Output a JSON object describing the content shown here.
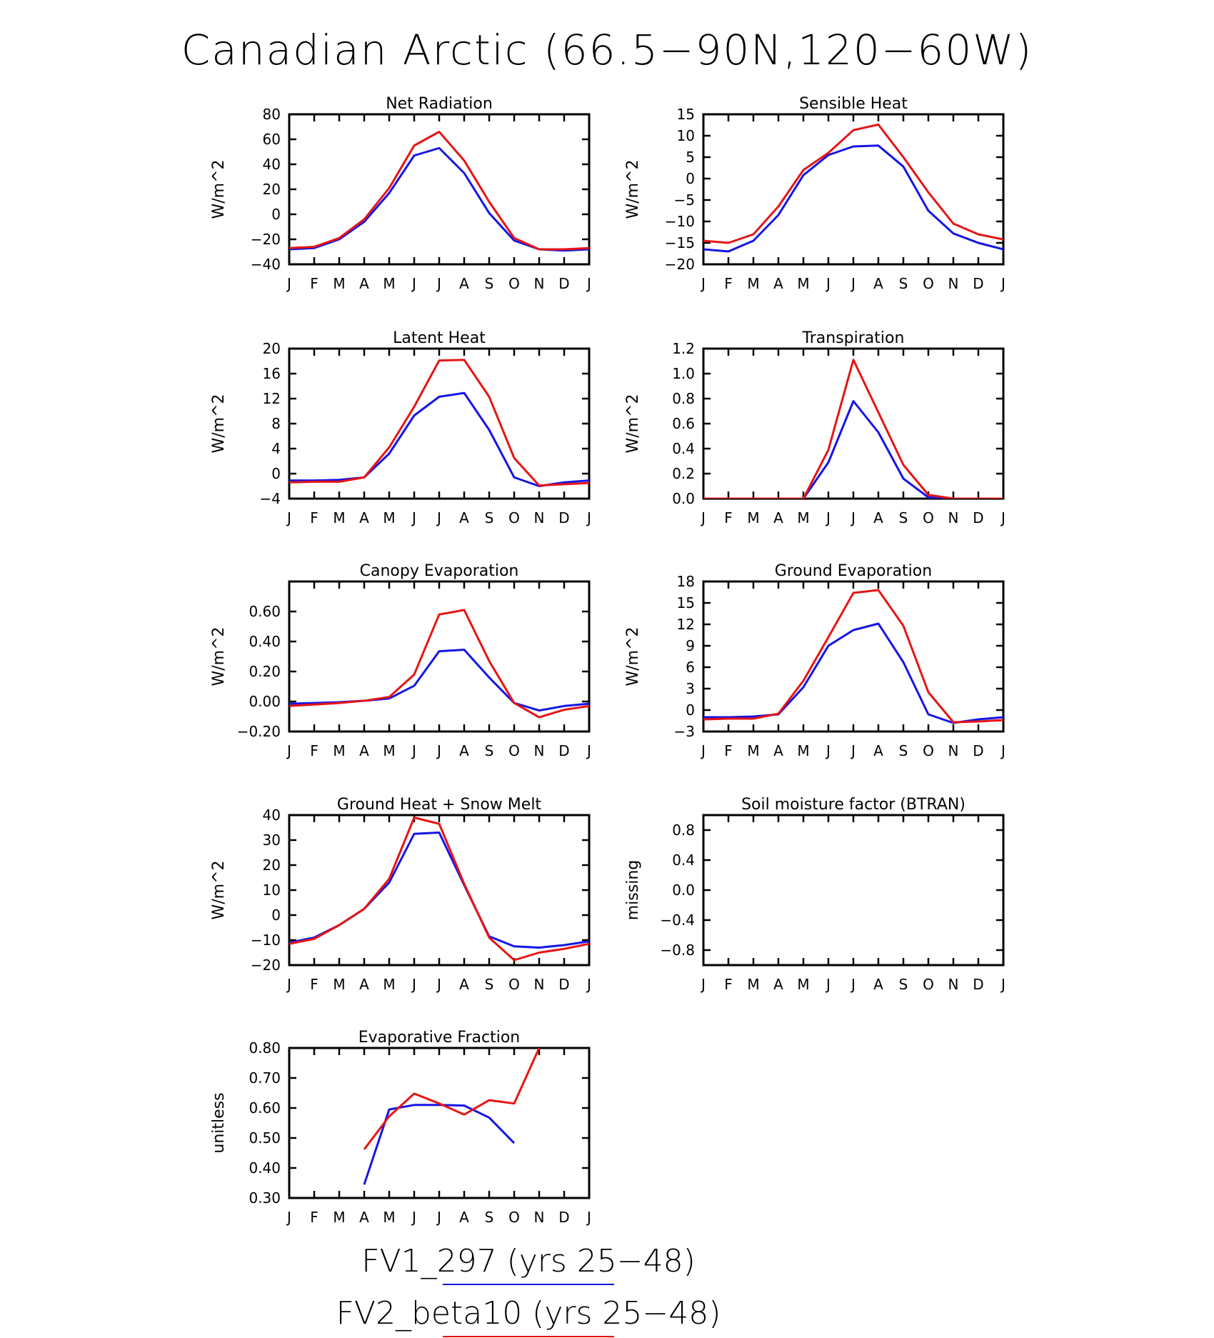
{
  "figure": {
    "title": "Canadian Arctic (66.5−90N,120−60W)",
    "legend": [
      {
        "label": "FV1_297 (yrs 25−48)",
        "color": "#1515e6"
      },
      {
        "label": "FV2_beta10 (yrs 25−48)",
        "color": "#e61515"
      }
    ]
  },
  "chart_data": [
    {
      "type": "line",
      "title": "Net Radiation",
      "ylabel": "W/m^2",
      "x": [
        "J",
        "F",
        "M",
        "A",
        "M",
        "J",
        "J",
        "A",
        "S",
        "O",
        "N",
        "D",
        "J"
      ],
      "ylim": [
        -40,
        80
      ],
      "yticks": [
        80,
        60,
        40,
        20,
        0,
        -20,
        -40
      ],
      "yticklabels": [
        "80",
        "60",
        "40",
        "20",
        "0",
        "−20",
        "−40"
      ],
      "series": [
        {
          "name": "FV1_297 (yrs 25−48)",
          "color": "#1515e6",
          "values": [
            -28,
            -27,
            -20,
            -6,
            17,
            47,
            53,
            33,
            1,
            -21,
            -28,
            -29,
            -28
          ]
        },
        {
          "name": "FV2_beta10 (yrs 25−48)",
          "color": "#e61515",
          "values": [
            -27,
            -26,
            -19,
            -4,
            21,
            55,
            66,
            43,
            10,
            -19,
            -28,
            -28,
            -27
          ]
        }
      ]
    },
    {
      "type": "line",
      "title": "Sensible Heat",
      "ylabel": "W/m^2",
      "x": [
        "J",
        "F",
        "M",
        "A",
        "M",
        "J",
        "J",
        "A",
        "S",
        "O",
        "N",
        "D",
        "J"
      ],
      "ylim": [
        -20,
        15
      ],
      "yticks": [
        15,
        10,
        5,
        0,
        -5,
        -10,
        -15,
        -20
      ],
      "yticklabels": [
        "15",
        "10",
        "5",
        "0",
        "−5",
        "−10",
        "−15",
        "−20"
      ],
      "series": [
        {
          "name": "FV1_297 (yrs 25−48)",
          "color": "#1515e6",
          "values": [
            -16.5,
            -17,
            -14.5,
            -8.5,
            0.8,
            5.5,
            7.5,
            7.7,
            2.8,
            -7.5,
            -12.8,
            -15,
            -16.5
          ]
        },
        {
          "name": "FV2_beta10 (yrs 25−48)",
          "color": "#e61515",
          "values": [
            -14.5,
            -15,
            -13,
            -6.5,
            2,
            6,
            11.3,
            12.6,
            5,
            -3.2,
            -10.5,
            -13,
            -14.2
          ]
        }
      ]
    },
    {
      "type": "line",
      "title": "Latent Heat",
      "ylabel": "W/m^2",
      "x": [
        "J",
        "F",
        "M",
        "A",
        "M",
        "J",
        "J",
        "A",
        "S",
        "O",
        "N",
        "D",
        "J"
      ],
      "ylim": [
        -4,
        20
      ],
      "yticks": [
        20,
        16,
        12,
        8,
        4,
        0,
        -4
      ],
      "yticklabels": [
        "20",
        "16",
        "12",
        "8",
        "4",
        "0",
        "−4"
      ],
      "series": [
        {
          "name": "FV1_297 (yrs 25−48)",
          "color": "#1515e6",
          "values": [
            -1.1,
            -1.1,
            -1.0,
            -0.6,
            3.2,
            9.3,
            12.3,
            12.9,
            7.0,
            -0.6,
            -2.0,
            -1.4,
            -1.1
          ]
        },
        {
          "name": "FV2_beta10 (yrs 25−48)",
          "color": "#e61515",
          "values": [
            -1.4,
            -1.3,
            -1.3,
            -0.6,
            4.2,
            10.7,
            18.1,
            18.2,
            12.3,
            2.5,
            -1.9,
            -1.7,
            -1.5
          ]
        }
      ]
    },
    {
      "type": "line",
      "title": "Transpiration",
      "ylabel": "W/m^2",
      "x": [
        "J",
        "F",
        "M",
        "A",
        "M",
        "J",
        "J",
        "A",
        "S",
        "O",
        "N",
        "D",
        "J"
      ],
      "ylim": [
        0.0,
        1.2
      ],
      "yticks": [
        1.2,
        1.0,
        0.8,
        0.6,
        0.4,
        0.2,
        0.0
      ],
      "yticklabels": [
        "1.2",
        "1.0",
        "0.8",
        "0.6",
        "0.4",
        "0.2",
        "0.0"
      ],
      "series": [
        {
          "name": "FV1_297 (yrs 25−48)",
          "color": "#1515e6",
          "values": [
            0,
            0,
            0,
            0,
            0,
            0.29,
            0.78,
            0.53,
            0.16,
            0.01,
            0,
            0,
            0
          ]
        },
        {
          "name": "FV2_beta10 (yrs 25−48)",
          "color": "#e61515",
          "values": [
            0,
            0,
            0,
            0,
            0,
            0.39,
            1.11,
            0.69,
            0.27,
            0.03,
            0,
            0,
            0
          ]
        }
      ]
    },
    {
      "type": "line",
      "title": "Canopy Evaporation",
      "ylabel": "W/m^2",
      "x": [
        "J",
        "F",
        "M",
        "A",
        "M",
        "J",
        "J",
        "A",
        "S",
        "O",
        "N",
        "D",
        "J"
      ],
      "ylim": [
        -0.2,
        0.8
      ],
      "yticks": [
        0.6,
        0.4,
        0.2,
        0.0,
        -0.2
      ],
      "yticklabels": [
        "0.60",
        "0.40",
        "0.20",
        "0.00",
        "−0.20"
      ],
      "series": [
        {
          "name": "FV1_297 (yrs 25−48)",
          "color": "#1515e6",
          "values": [
            -0.015,
            -0.01,
            -0.005,
            0.005,
            0.02,
            0.105,
            0.335,
            0.345,
            0.16,
            -0.01,
            -0.06,
            -0.03,
            -0.015
          ]
        },
        {
          "name": "FV2_beta10 (yrs 25−48)",
          "color": "#e61515",
          "values": [
            -0.03,
            -0.02,
            -0.01,
            0.005,
            0.03,
            0.18,
            0.58,
            0.61,
            0.27,
            -0.01,
            -0.105,
            -0.055,
            -0.03
          ]
        }
      ]
    },
    {
      "type": "line",
      "title": "Ground Evaporation",
      "ylabel": "W/m^2",
      "x": [
        "J",
        "F",
        "M",
        "A",
        "M",
        "J",
        "J",
        "A",
        "S",
        "O",
        "N",
        "D",
        "J"
      ],
      "ylim": [
        -3,
        18
      ],
      "yticks": [
        18,
        15,
        12,
        9,
        6,
        3,
        0,
        -3
      ],
      "yticklabels": [
        "18",
        "15",
        "12",
        "9",
        "6",
        "3",
        "0",
        "−3"
      ],
      "series": [
        {
          "name": "FV1_297 (yrs 25−48)",
          "color": "#1515e6",
          "values": [
            -1.0,
            -1.0,
            -0.9,
            -0.6,
            3.2,
            9.0,
            11.2,
            12.1,
            6.7,
            -0.6,
            -1.8,
            -1.3,
            -1.0
          ]
        },
        {
          "name": "FV2_beta10 (yrs 25−48)",
          "color": "#e61515",
          "values": [
            -1.3,
            -1.2,
            -1.2,
            -0.5,
            4.1,
            10.2,
            16.4,
            16.8,
            11.8,
            2.5,
            -1.7,
            -1.6,
            -1.4
          ]
        }
      ]
    },
    {
      "type": "line",
      "title": "Ground Heat + Snow Melt",
      "ylabel": "W/m^2",
      "x": [
        "J",
        "F",
        "M",
        "A",
        "M",
        "J",
        "J",
        "A",
        "S",
        "O",
        "N",
        "D",
        "J"
      ],
      "ylim": [
        -20,
        40
      ],
      "yticks": [
        40,
        30,
        20,
        10,
        0,
        -10,
        -20
      ],
      "yticklabels": [
        "40",
        "30",
        "20",
        "10",
        "0",
        "−10",
        "−20"
      ],
      "series": [
        {
          "name": "FV1_297 (yrs 25−48)",
          "color": "#1515e6",
          "values": [
            -11,
            -9,
            -4,
            2.5,
            13,
            32.5,
            33,
            12,
            -8.5,
            -12.5,
            -13,
            -12,
            -10.5
          ]
        },
        {
          "name": "FV2_beta10 (yrs 25−48)",
          "color": "#e61515",
          "values": [
            -11.5,
            -9.5,
            -4,
            2.5,
            14.5,
            39,
            36.5,
            12.5,
            -9,
            -18,
            -15,
            -13.5,
            -11.5
          ]
        }
      ]
    },
    {
      "type": "line",
      "title": "Soil moisture factor (BTRAN)",
      "ylabel": "missing",
      "x": [
        "J",
        "F",
        "M",
        "A",
        "M",
        "J",
        "J",
        "A",
        "S",
        "O",
        "N",
        "D",
        "J"
      ],
      "ylim": [
        -1.0,
        1.0
      ],
      "yticks": [
        0.8,
        0.4,
        0.0,
        -0.4,
        -0.8
      ],
      "yticklabels": [
        "0.8",
        "0.4",
        "0.0",
        "−0.4",
        "−0.8"
      ],
      "series": []
    },
    {
      "type": "line",
      "title": "Evaporative Fraction",
      "ylabel": "unitless",
      "x": [
        "J",
        "F",
        "M",
        "A",
        "M",
        "J",
        "J",
        "A",
        "S",
        "O",
        "N",
        "D",
        "J"
      ],
      "ylim": [
        0.3,
        0.8
      ],
      "yticks": [
        0.8,
        0.7,
        0.6,
        0.5,
        0.4,
        0.3
      ],
      "yticklabels": [
        "0.80",
        "0.70",
        "0.60",
        "0.50",
        "0.40",
        "0.30"
      ],
      "series": [
        {
          "name": "FV1_297 (yrs 25−48)",
          "color": "#1515e6",
          "values": [
            null,
            null,
            null,
            0.345,
            0.595,
            0.61,
            0.61,
            0.608,
            0.568,
            0.483,
            null,
            null,
            null
          ]
        },
        {
          "name": "FV2_beta10 (yrs 25−48)",
          "color": "#e61515",
          "values": [
            null,
            null,
            null,
            0.462,
            0.572,
            0.648,
            0.615,
            0.578,
            0.626,
            0.615,
            0.8,
            null,
            null
          ]
        }
      ]
    }
  ]
}
